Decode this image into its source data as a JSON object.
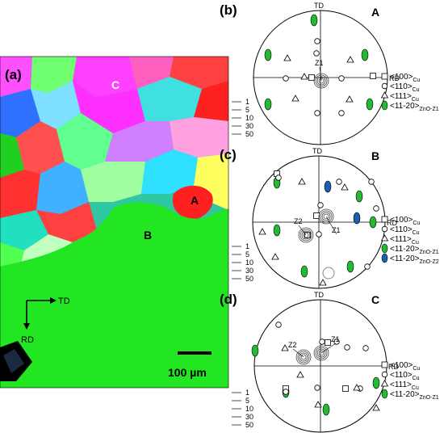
{
  "panel_a": {
    "label": "(a)",
    "grain_a": "A",
    "grain_b": "B",
    "grain_c": "C",
    "axis_td": "TD",
    "axis_rd": "RD",
    "scale_bar": "100 µm",
    "colors": {
      "green": "#22e622",
      "red": "#ff2020",
      "magenta": "#ff40ff",
      "blue": "#2060ff",
      "cyan": "#30d0e0"
    }
  },
  "contour_levels": [
    "1",
    "5",
    "10",
    "30",
    "50"
  ],
  "pole_figures": [
    {
      "panel_label": "(b)",
      "grain": "A",
      "td": "TD",
      "rd": "RD",
      "annotations": [
        "Z1"
      ],
      "legend": [
        {
          "symbol": "square",
          "text": "<100>",
          "sub": "Cu"
        },
        {
          "symbol": "circle",
          "text": "<110>",
          "sub": "Cu"
        },
        {
          "symbol": "triangle",
          "text": "<111>",
          "sub": "Cu"
        },
        {
          "symbol": "green-oval",
          "text": "<11-20>",
          "sub": "ZnO-Z1"
        }
      ]
    },
    {
      "panel_label": "(c)",
      "grain": "B",
      "td": "TD",
      "rd": "RD",
      "annotations": [
        "Z2",
        "Z1"
      ],
      "legend": [
        {
          "symbol": "square",
          "text": "<100>",
          "sub": "Cu"
        },
        {
          "symbol": "circle",
          "text": "<110>",
          "sub": "Cu"
        },
        {
          "symbol": "triangle",
          "text": "<111>",
          "sub": "Cu"
        },
        {
          "symbol": "green-oval",
          "text": "<11-20>",
          "sub": "ZnO-Z1"
        },
        {
          "symbol": "blue-oval",
          "text": "<11-20>",
          "sub": "ZnO-Z2"
        }
      ]
    },
    {
      "panel_label": "(d)",
      "grain": "C",
      "td": "TD",
      "rd": "RD",
      "annotations": [
        "Z2",
        "Z1"
      ],
      "legend": [
        {
          "symbol": "square",
          "text": "<100>",
          "sub": "Cu"
        },
        {
          "symbol": "circle",
          "text": "<110>",
          "sub": "Cu"
        },
        {
          "symbol": "triangle",
          "text": "<111>",
          "sub": "Cu"
        },
        {
          "symbol": "green-oval",
          "text": "<11-20>",
          "sub": "ZnO-Z1"
        }
      ]
    }
  ]
}
